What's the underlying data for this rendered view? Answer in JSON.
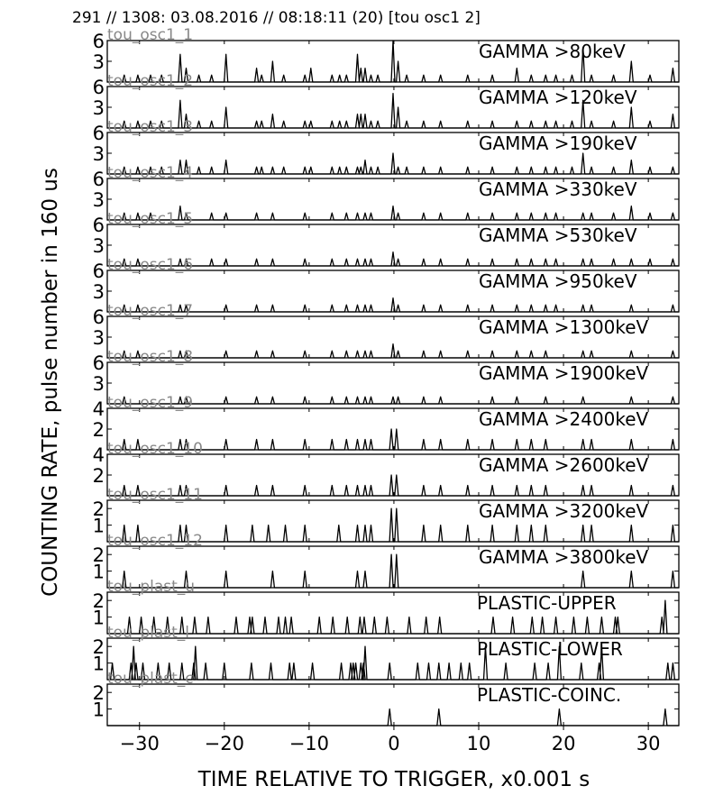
{
  "header": "291 // 1308:   03.08.2016 // 08:18:11 (20)  [tou osc1 2]",
  "ylabel": "COUNTING RATE,    pulse number in 160 us",
  "xlabel": "TIME RELATIVE TO TRIGGER,   x0.001 s",
  "chart_data": {
    "type": "line",
    "title": "291 // 1308:   03.08.2016 // 08:18:11 (20)  [tou osc1 2]",
    "xlabel": "TIME RELATIVE TO TRIGGER,   x0.001 s",
    "ylabel": "COUNTING RATE,    pulse number in 160 us",
    "xlim": [
      -33.8,
      33.6
    ],
    "xticks": [
      -30,
      -20,
      -10,
      0,
      10,
      20,
      30
    ],
    "xtick_labels": [
      "−30",
      "−20",
      "−10",
      "0",
      "10",
      "20",
      "30"
    ],
    "grid": false,
    "panels": [
      {
        "channel": "tou_osc1_1",
        "label": "GAMMA >80keV",
        "ylim": [
          0,
          6
        ],
        "yticks": [
          3,
          6
        ],
        "x": [
          -31.8,
          -30.2,
          -28.7,
          -27.4,
          -25.2,
          -24.5,
          -23.0,
          -21.5,
          -19.8,
          -16.2,
          -15.6,
          -14.3,
          -13.0,
          -10.5,
          -9.8,
          -7.3,
          -6.4,
          -5.6,
          -4.3,
          -3.9,
          -3.4,
          -2.7,
          -1.9,
          -0.1,
          0.5,
          1.5,
          3.5,
          5.5,
          8.7,
          11.6,
          14.5,
          16.2,
          17.9,
          19.1,
          21.0,
          22.3,
          23.3,
          25.9,
          28.0,
          30.2,
          32.9
        ],
        "y": [
          1,
          1,
          1,
          1,
          4,
          2,
          1,
          1,
          4,
          2,
          1,
          3,
          1,
          1,
          2,
          1,
          1,
          1,
          4,
          2,
          2,
          1,
          1,
          6,
          3,
          1,
          1,
          1,
          1,
          1,
          2,
          1,
          1,
          1,
          1,
          5,
          1,
          1,
          3,
          1,
          2
        ]
      },
      {
        "channel": "tou_osc1_2",
        "label": "GAMMA >120keV",
        "ylim": [
          0,
          6
        ],
        "yticks": [
          3,
          6
        ],
        "x": [
          -31.8,
          -30.2,
          -28.7,
          -27.4,
          -25.2,
          -24.5,
          -23.0,
          -21.5,
          -19.8,
          -16.2,
          -15.6,
          -14.3,
          -13.0,
          -10.5,
          -9.8,
          -7.3,
          -6.4,
          -5.6,
          -4.3,
          -3.9,
          -3.4,
          -2.7,
          -1.9,
          -0.1,
          0.5,
          1.5,
          3.5,
          5.5,
          8.7,
          11.6,
          14.5,
          16.2,
          17.9,
          19.1,
          21.0,
          22.3,
          23.3,
          25.9,
          28.0,
          30.2,
          32.9
        ],
        "y": [
          1,
          1,
          1,
          1,
          4,
          2,
          1,
          1,
          3,
          1,
          1,
          2,
          1,
          1,
          1,
          1,
          1,
          1,
          2,
          2,
          2,
          1,
          1,
          5,
          3,
          1,
          1,
          1,
          1,
          1,
          1,
          1,
          1,
          1,
          1,
          4,
          1,
          1,
          3,
          1,
          2
        ]
      },
      {
        "channel": "tou_osc1_3",
        "label": "GAMMA >190keV",
        "ylim": [
          0,
          6
        ],
        "yticks": [
          3,
          6
        ],
        "x": [
          -31.8,
          -30.2,
          -28.7,
          -27.4,
          -25.2,
          -24.5,
          -23.0,
          -21.5,
          -19.8,
          -16.2,
          -15.6,
          -14.3,
          -13.0,
          -10.5,
          -9.8,
          -7.3,
          -6.4,
          -5.6,
          -4.3,
          -3.9,
          -3.4,
          -2.7,
          -1.9,
          -0.1,
          0.5,
          1.5,
          3.5,
          5.5,
          8.7,
          11.6,
          14.5,
          16.2,
          17.9,
          19.1,
          21.0,
          22.3,
          23.3,
          25.9,
          28.0,
          30.2,
          32.9
        ],
        "y": [
          1,
          1,
          1,
          1,
          2,
          2,
          1,
          1,
          2,
          1,
          1,
          1,
          1,
          1,
          1,
          1,
          1,
          1,
          1,
          1,
          2,
          1,
          1,
          3,
          1,
          1,
          1,
          1,
          1,
          1,
          1,
          1,
          1,
          1,
          1,
          3,
          1,
          1,
          2,
          1,
          1
        ]
      },
      {
        "channel": "tou_osc1_4",
        "label": "GAMMA >330keV",
        "ylim": [
          0,
          6
        ],
        "yticks": [
          3,
          6
        ],
        "x": [
          -31.8,
          -30.2,
          -28.7,
          -25.2,
          -24.5,
          -21.5,
          -19.8,
          -16.2,
          -14.3,
          -10.5,
          -7.3,
          -5.6,
          -4.3,
          -3.4,
          -2.7,
          -0.1,
          0.5,
          3.5,
          5.5,
          8.7,
          11.6,
          14.5,
          16.2,
          17.9,
          19.1,
          22.3,
          23.3,
          25.9,
          28.0,
          30.2,
          32.9
        ],
        "y": [
          1,
          1,
          1,
          2,
          1,
          1,
          1,
          1,
          1,
          1,
          1,
          1,
          1,
          1,
          1,
          2,
          1,
          1,
          1,
          1,
          1,
          1,
          1,
          1,
          1,
          1,
          1,
          1,
          2,
          1,
          1
        ]
      },
      {
        "channel": "tou_osc1_5",
        "label": "GAMMA >530keV",
        "ylim": [
          0,
          6
        ],
        "yticks": [
          3,
          6
        ],
        "x": [
          -31.8,
          -30.2,
          -25.2,
          -24.5,
          -21.5,
          -19.8,
          -16.2,
          -14.3,
          -10.5,
          -7.3,
          -5.6,
          -4.3,
          -3.4,
          -2.7,
          -0.1,
          0.5,
          3.5,
          5.5,
          8.7,
          11.6,
          14.5,
          16.2,
          17.9,
          19.1,
          22.3,
          23.3,
          25.9,
          28.0,
          30.2,
          32.9
        ],
        "y": [
          1,
          1,
          1,
          1,
          1,
          1,
          1,
          1,
          1,
          1,
          1,
          1,
          1,
          1,
          2,
          1,
          1,
          1,
          1,
          1,
          1,
          1,
          1,
          1,
          1,
          1,
          1,
          1,
          1,
          1
        ]
      },
      {
        "channel": "tou_osc1_6",
        "label": "GAMMA >950keV",
        "ylim": [
          0,
          6
        ],
        "yticks": [
          3,
          6
        ],
        "x": [
          -31.8,
          -30.2,
          -25.2,
          -24.5,
          -19.8,
          -16.2,
          -14.3,
          -10.5,
          -7.3,
          -5.6,
          -4.3,
          -3.4,
          -2.7,
          -0.1,
          0.5,
          3.5,
          5.5,
          8.7,
          11.6,
          14.5,
          16.2,
          17.9,
          19.1,
          22.3,
          23.3,
          28.0,
          32.9
        ],
        "y": [
          1,
          1,
          1,
          1,
          1,
          1,
          1,
          1,
          1,
          1,
          1,
          1,
          1,
          2,
          1,
          1,
          1,
          1,
          1,
          1,
          1,
          1,
          1,
          1,
          1,
          1,
          1
        ]
      },
      {
        "channel": "tou_osc1_7",
        "label": "GAMMA >1300keV",
        "ylim": [
          0,
          6
        ],
        "yticks": [
          3,
          6
        ],
        "x": [
          -31.8,
          -30.2,
          -25.2,
          -24.5,
          -19.8,
          -16.2,
          -14.3,
          -10.5,
          -7.3,
          -5.6,
          -4.3,
          -3.4,
          -2.7,
          -0.1,
          0.5,
          3.5,
          5.5,
          8.7,
          11.6,
          14.5,
          16.2,
          17.9,
          22.3,
          23.3,
          28.0,
          32.9
        ],
        "y": [
          1,
          1,
          1,
          1,
          1,
          1,
          1,
          1,
          1,
          1,
          1,
          1,
          1,
          2,
          1,
          1,
          1,
          1,
          1,
          1,
          1,
          1,
          1,
          1,
          1,
          1
        ]
      },
      {
        "channel": "tou_osc1_8",
        "label": "GAMMA >1900keV",
        "ylim": [
          0,
          6
        ],
        "yticks": [
          3,
          6
        ],
        "x": [
          -31.8,
          -25.2,
          -24.5,
          -19.8,
          -16.2,
          -14.3,
          -10.5,
          -7.3,
          -5.6,
          -4.3,
          -3.4,
          -2.7,
          -0.1,
          0.5,
          3.5,
          5.5,
          11.6,
          14.5,
          17.9,
          22.3,
          28.0,
          32.9
        ],
        "y": [
          1,
          1,
          1,
          1,
          1,
          1,
          1,
          1,
          1,
          1,
          1,
          1,
          1,
          1,
          1,
          1,
          1,
          1,
          1,
          1,
          1,
          1
        ]
      },
      {
        "channel": "tou_osc1_9",
        "label": "GAMMA >2400keV",
        "ylim": [
          0,
          4
        ],
        "yticks": [
          2,
          4
        ],
        "x": [
          -31.8,
          -30.2,
          -25.2,
          -24.5,
          -19.8,
          -16.2,
          -14.3,
          -10.5,
          -7.3,
          -5.6,
          -4.3,
          -3.4,
          -2.7,
          -0.3,
          0.3,
          3.5,
          5.5,
          8.7,
          11.6,
          14.5,
          16.2,
          17.9,
          22.3,
          23.3,
          28.0,
          32.9
        ],
        "y": [
          1,
          1,
          1,
          1,
          1,
          1,
          1,
          1,
          1,
          1,
          1,
          1,
          1,
          2,
          2,
          1,
          1,
          1,
          1,
          1,
          1,
          1,
          1,
          1,
          1,
          1
        ]
      },
      {
        "channel": "tou_osc1_10",
        "label": "GAMMA >2600keV",
        "ylim": [
          0,
          4
        ],
        "yticks": [
          2,
          4
        ],
        "x": [
          -31.8,
          -30.2,
          -25.2,
          -24.5,
          -19.8,
          -16.2,
          -14.3,
          -10.5,
          -7.3,
          -5.6,
          -4.3,
          -3.4,
          -2.7,
          -0.3,
          0.3,
          3.5,
          5.5,
          8.7,
          11.6,
          14.5,
          16.2,
          17.9,
          22.3,
          23.3,
          28.0,
          32.9
        ],
        "y": [
          1,
          1,
          1,
          1,
          1,
          1,
          1,
          1,
          1,
          1,
          1,
          1,
          1,
          2,
          2,
          1,
          1,
          1,
          1,
          1,
          1,
          1,
          1,
          1,
          1,
          1
        ]
      },
      {
        "channel": "tou_osc1_11",
        "label": "GAMMA >3200keV",
        "ylim": [
          0,
          2.5
        ],
        "yticks": [
          1,
          2
        ],
        "x": [
          -31.8,
          -30.2,
          -25.2,
          -24.5,
          -19.8,
          -16.7,
          -14.8,
          -12.8,
          -10.5,
          -6.5,
          -4.3,
          -3.4,
          -2.7,
          -0.3,
          0.3,
          3.5,
          5.5,
          8.7,
          11.6,
          14.5,
          16.2,
          17.9,
          22.3,
          23.3,
          28.0,
          32.9
        ],
        "y": [
          1,
          1,
          1,
          1,
          1,
          1,
          1,
          1,
          1,
          1,
          1,
          1,
          1,
          2,
          2,
          1,
          1,
          1,
          1,
          1,
          1,
          1,
          1,
          1,
          1,
          1
        ]
      },
      {
        "channel": "tou_osc1_12",
        "label": "GAMMA >3800keV",
        "ylim": [
          0,
          2.5
        ],
        "yticks": [
          1,
          2
        ],
        "x": [
          -31.8,
          -24.5,
          -19.8,
          -14.3,
          -10.5,
          -4.3,
          -3.4,
          -0.3,
          0.3,
          22.3,
          28.0,
          32.9
        ],
        "y": [
          1,
          1,
          1,
          1,
          1,
          1,
          1,
          2,
          2,
          1,
          1,
          1
        ]
      },
      {
        "channel": "tou_plast_u",
        "label": "PLASTIC-UPPER",
        "ylim": [
          0,
          2.5
        ],
        "yticks": [
          1,
          2
        ],
        "x": [
          -31.2,
          -29.8,
          -28.3,
          -26.7,
          -25.0,
          -23.5,
          -21.9,
          -18.6,
          -17.0,
          -16.7,
          -15.2,
          -13.6,
          -12.8,
          -12.1,
          -8.8,
          -7.2,
          -5.5,
          -4.0,
          -3.5,
          -2.3,
          -0.8,
          1.8,
          3.8,
          5.4,
          11.7,
          14.0,
          16.3,
          17.5,
          19.1,
          21.2,
          22.8,
          24.5,
          26.1,
          26.4,
          31.6,
          32.0
        ],
        "y": [
          1,
          1,
          1,
          1,
          1,
          1,
          1,
          1,
          1,
          1,
          1,
          1,
          1,
          1,
          1,
          1,
          1,
          1,
          1,
          1,
          1,
          1,
          1,
          1,
          1,
          1,
          1,
          1,
          1,
          1,
          1,
          1,
          1,
          1,
          1,
          2
        ]
      },
      {
        "channel": "tou_plast_l",
        "label": "PLASTIC-LOWER",
        "ylim": [
          0,
          2.5
        ],
        "yticks": [
          1,
          2
        ],
        "x": [
          -33.2,
          -31.0,
          -30.7,
          -30.4,
          -29.6,
          -27.8,
          -26.5,
          -25.0,
          -23.6,
          -23.4,
          -22.2,
          -20.0,
          -16.8,
          -14.5,
          -12.3,
          -11.8,
          -9.6,
          -6.2,
          -5.1,
          -4.8,
          -4.5,
          -3.9,
          -3.6,
          -3.4,
          -0.5,
          2.8,
          4.1,
          5.3,
          6.5,
          7.9,
          8.9,
          10.8,
          13.2,
          16.6,
          18.2,
          19.5,
          22.1,
          24.2,
          24.5,
          32.3,
          32.9
        ],
        "y": [
          1,
          1,
          2,
          1,
          1,
          1,
          1,
          1,
          1,
          2,
          1,
          1,
          1,
          1,
          1,
          1,
          1,
          1,
          1,
          1,
          1,
          1,
          1,
          2,
          1,
          1,
          1,
          1,
          1,
          1,
          1,
          2,
          1,
          1,
          1,
          2,
          1,
          1,
          2,
          1,
          1
        ]
      },
      {
        "channel": "tou_plast_c",
        "label": "PLASTIC-COINC.",
        "ylim": [
          0,
          2.5
        ],
        "yticks": [
          1,
          2
        ],
        "x": [
          -0.5,
          5.3,
          19.5,
          32.0
        ],
        "y": [
          1,
          1,
          1,
          1
        ]
      }
    ]
  }
}
